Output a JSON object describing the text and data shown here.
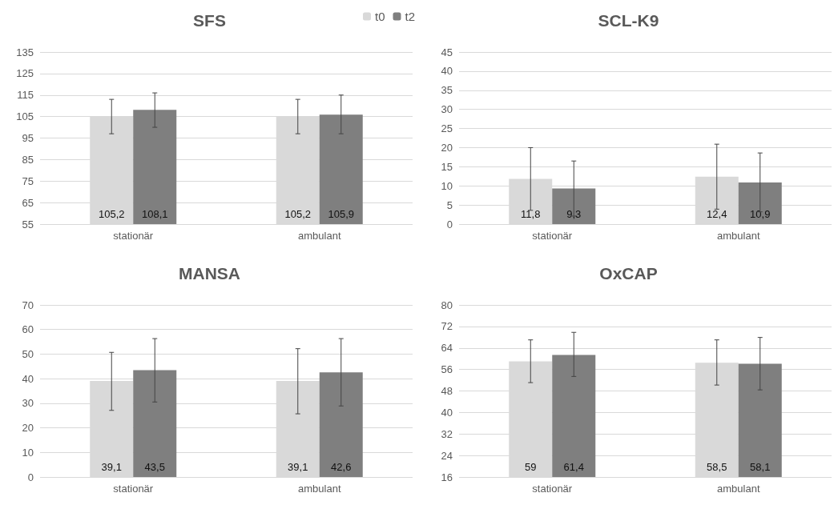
{
  "chart_data": [
    {
      "type": "bar",
      "title": "SFS",
      "categories": [
        "stationär",
        "ambulant"
      ],
      "legend": "top right",
      "grid": "y",
      "ylim": [
        55,
        135
      ],
      "yticks": [
        55,
        65,
        75,
        85,
        95,
        105,
        115,
        125,
        135
      ],
      "series": [
        {
          "name": "t0",
          "color": "#d9d9d9",
          "values": [
            105.2,
            105.2
          ],
          "value_labels": [
            "105,2",
            "105,2"
          ],
          "errors": [
            [
              97,
              113
            ],
            [
              97,
              113
            ]
          ]
        },
        {
          "name": "t2",
          "color": "#7f7f7f",
          "values": [
            108.1,
            105.9
          ],
          "value_labels": [
            "108,1",
            "105,9"
          ],
          "errors": [
            [
              100,
              116
            ],
            [
              97,
              115
            ]
          ]
        }
      ]
    },
    {
      "type": "bar",
      "title": "SCL-K9",
      "categories": [
        "stationär",
        "ambulant"
      ],
      "grid": "y",
      "ylim": [
        0,
        45
      ],
      "yticks": [
        0,
        5,
        10,
        15,
        20,
        25,
        30,
        35,
        40,
        45
      ],
      "series": [
        {
          "color": "#d9d9d9",
          "values": [
            11.8,
            12.4
          ],
          "value_labels": [
            "11,8",
            "12,4"
          ],
          "errors": [
            [
              3.6,
              20
            ],
            [
              3.9,
              20.9
            ]
          ]
        },
        {
          "color": "#7f7f7f",
          "values": [
            9.3,
            10.9
          ],
          "value_labels": [
            "9,3",
            "10,9"
          ],
          "errors": [
            [
              2.1,
              16.5
            ],
            [
              3.2,
              18.6
            ]
          ]
        }
      ]
    },
    {
      "type": "bar",
      "title": "MANSA",
      "categories": [
        "stationär",
        "ambulant"
      ],
      "grid": "y",
      "ylim": [
        0,
        70
      ],
      "yticks": [
        0,
        10,
        20,
        30,
        40,
        50,
        60,
        70
      ],
      "series": [
        {
          "color": "#d9d9d9",
          "values": [
            39.1,
            39.1
          ],
          "value_labels": [
            "39,1",
            "39,1"
          ],
          "errors": [
            [
              27.1,
              50.7
            ],
            [
              25.7,
              52.2
            ]
          ]
        },
        {
          "color": "#7f7f7f",
          "values": [
            43.5,
            42.6
          ],
          "value_labels": [
            "43,5",
            "42,6"
          ],
          "errors": [
            [
              30.5,
              56.3
            ],
            [
              28.9,
              56.3
            ]
          ]
        }
      ]
    },
    {
      "type": "bar",
      "title": "OxCAP",
      "categories": [
        "stationär",
        "ambulant"
      ],
      "grid": "y",
      "ylim": [
        16,
        80
      ],
      "yticks": [
        16,
        24,
        32,
        40,
        48,
        56,
        64,
        72,
        80
      ],
      "series": [
        {
          "color": "#d9d9d9",
          "values": [
            59,
            58.5
          ],
          "value_labels": [
            "59",
            "58,5"
          ],
          "errors": [
            [
              51.1,
              67
            ],
            [
              50.2,
              67
            ]
          ]
        },
        {
          "color": "#7f7f7f",
          "values": [
            61.4,
            58.1
          ],
          "value_labels": [
            "61,4",
            "58,1"
          ],
          "errors": [
            [
              53.4,
              69.8
            ],
            [
              48.4,
              67.9
            ]
          ]
        }
      ]
    }
  ]
}
